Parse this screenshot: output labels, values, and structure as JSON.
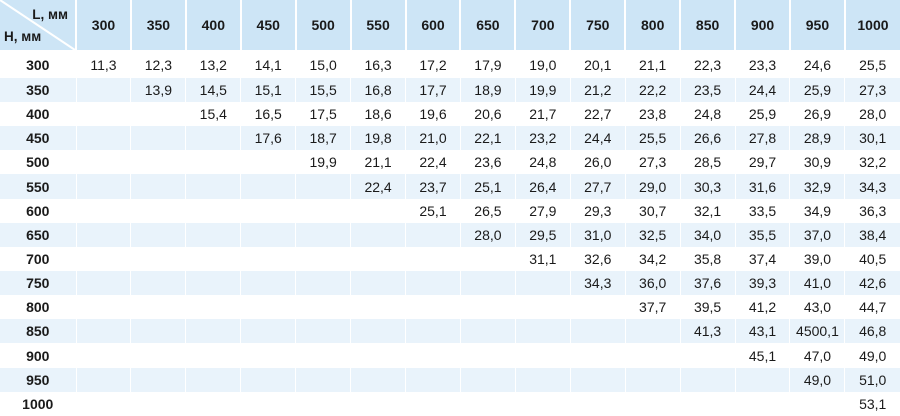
{
  "colors": {
    "header_bg": "#cde5f6",
    "row_alt_bg": "#e9f3fb",
    "row_bg": "#ffffff",
    "text": "#1a1a1a",
    "separator": "#ffffff"
  },
  "table": {
    "corner": {
      "l_label": "L, мм",
      "h_label": "H, мм"
    },
    "columns": [
      "300",
      "350",
      "400",
      "450",
      "500",
      "550",
      "600",
      "650",
      "700",
      "750",
      "800",
      "850",
      "900",
      "950",
      "1000"
    ],
    "rows": [
      {
        "label": "300",
        "values": [
          "11,3",
          "12,3",
          "13,2",
          "14,1",
          "15,0",
          "16,3",
          "17,2",
          "17,9",
          "19,0",
          "20,1",
          "21,1",
          "22,3",
          "23,3",
          "24,6",
          "25,5"
        ]
      },
      {
        "label": "350",
        "values": [
          "",
          "13,9",
          "14,5",
          "15,1",
          "15,5",
          "16,8",
          "17,7",
          "18,9",
          "19,9",
          "21,2",
          "22,2",
          "23,5",
          "24,4",
          "25,9",
          "27,3"
        ]
      },
      {
        "label": "400",
        "values": [
          "",
          "",
          "15,4",
          "16,5",
          "17,5",
          "18,6",
          "19,6",
          "20,6",
          "21,7",
          "22,7",
          "23,8",
          "24,8",
          "25,9",
          "26,9",
          "28,0"
        ]
      },
      {
        "label": "450",
        "values": [
          "",
          "",
          "",
          "17,6",
          "18,7",
          "19,8",
          "21,0",
          "22,1",
          "23,2",
          "24,4",
          "25,5",
          "26,6",
          "27,8",
          "28,9",
          "30,1"
        ]
      },
      {
        "label": "500",
        "values": [
          "",
          "",
          "",
          "",
          "19,9",
          "21,1",
          "22,4",
          "23,6",
          "24,8",
          "26,0",
          "27,3",
          "28,5",
          "29,7",
          "30,9",
          "32,2"
        ]
      },
      {
        "label": "550",
        "values": [
          "",
          "",
          "",
          "",
          "",
          "22,4",
          "23,7",
          "25,1",
          "26,4",
          "27,7",
          "29,0",
          "30,3",
          "31,6",
          "32,9",
          "34,3"
        ]
      },
      {
        "label": "600",
        "values": [
          "",
          "",
          "",
          "",
          "",
          "",
          "25,1",
          "26,5",
          "27,9",
          "29,3",
          "30,7",
          "32,1",
          "33,5",
          "34,9",
          "36,3"
        ]
      },
      {
        "label": "650",
        "values": [
          "",
          "",
          "",
          "",
          "",
          "",
          "",
          "28,0",
          "29,5",
          "31,0",
          "32,5",
          "34,0",
          "35,5",
          "37,0",
          "38,4"
        ]
      },
      {
        "label": "700",
        "values": [
          "",
          "",
          "",
          "",
          "",
          "",
          "",
          "",
          "31,1",
          "32,6",
          "34,2",
          "35,8",
          "37,4",
          "39,0",
          "40,5"
        ]
      },
      {
        "label": "750",
        "values": [
          "",
          "",
          "",
          "",
          "",
          "",
          "",
          "",
          "",
          "34,3",
          "36,0",
          "37,6",
          "39,3",
          "41,0",
          "42,6"
        ]
      },
      {
        "label": "800",
        "values": [
          "",
          "",
          "",
          "",
          "",
          "",
          "",
          "",
          "",
          "",
          "37,7",
          "39,5",
          "41,2",
          "43,0",
          "44,7"
        ]
      },
      {
        "label": "850",
        "values": [
          "",
          "",
          "",
          "",
          "",
          "",
          "",
          "",
          "",
          "",
          "",
          "41,3",
          "43,1",
          "4500,1",
          "46,8"
        ]
      },
      {
        "label": "900",
        "values": [
          "",
          "",
          "",
          "",
          "",
          "",
          "",
          "",
          "",
          "",
          "",
          "",
          "45,1",
          "47,0",
          "49,0"
        ]
      },
      {
        "label": "950",
        "values": [
          "",
          "",
          "",
          "",
          "",
          "",
          "",
          "",
          "",
          "",
          "",
          "",
          "",
          "49,0",
          "51,0"
        ]
      },
      {
        "label": "1000",
        "values": [
          "",
          "",
          "",
          "",
          "",
          "",
          "",
          "",
          "",
          "",
          "",
          "",
          "",
          "",
          "53,1"
        ]
      }
    ]
  }
}
